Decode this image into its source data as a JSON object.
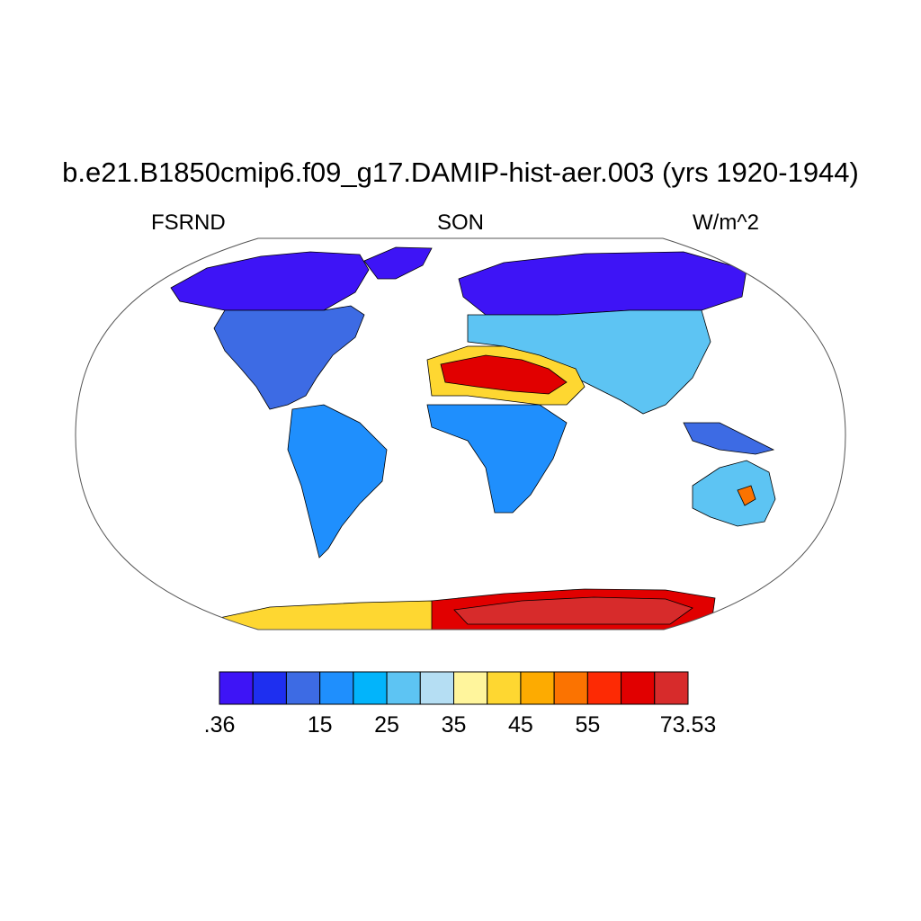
{
  "title": "b.e21.B1850cmip6.f09_g17.DAMIP-hist-aer.003 (yrs 1920-1944)",
  "subtitle_left": "FSRND",
  "subtitle_center": "SON",
  "subtitle_right": "W/m^2",
  "colorbar": {
    "colors": [
      "#3e14f6",
      "#1e2ff0",
      "#3d6be4",
      "#1f8ffd",
      "#02b4fb",
      "#5dc4f3",
      "#b5def3",
      "#fff59c",
      "#fed731",
      "#fdab01",
      "#fb7301",
      "#fd2a04",
      "#e10000",
      "#d72b2b"
    ],
    "labels": [
      ".36",
      "15",
      "25",
      "35",
      "45",
      "55",
      "73.53"
    ],
    "label_positions": [
      0,
      3,
      5,
      7,
      9,
      11,
      14
    ]
  },
  "map_colors": {
    "arctic": "#3e14f6",
    "temperate": "#3d6be4",
    "tropical": "#1f8ffd",
    "sky": "#5dc4f3",
    "pale": "#b5def3",
    "desert_yellow": "#fed731",
    "desert_orange": "#fb7301",
    "desert_red": "#e10000",
    "antarctic_red": "#d72b2b",
    "coast": "#000000",
    "frame": "#555555"
  }
}
